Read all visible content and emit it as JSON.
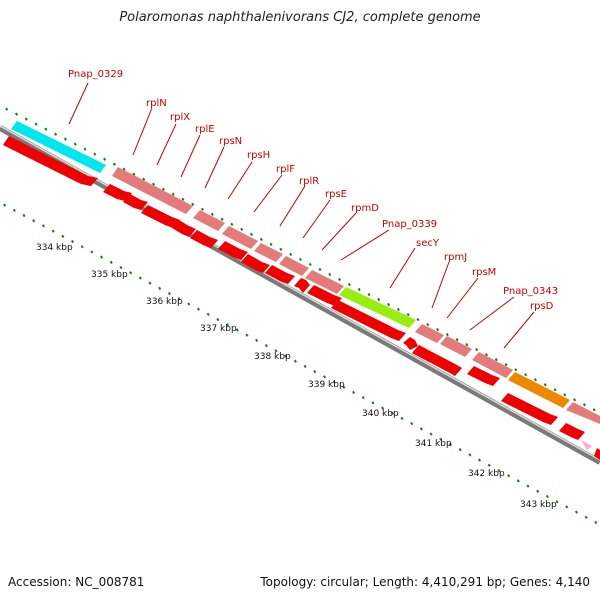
{
  "title": "Polaromonas naphthalenivorans CJ2, complete genome",
  "accession": "Accession: NC_008781",
  "summary": "Topology: circular; Length: 4,410,291 bp; Genes: 4,140",
  "gene_labels": [
    "Pnap_0329",
    "rplN",
    "rplX",
    "rplE",
    "rpsN",
    "rpsH",
    "rplF",
    "rplR",
    "rpsE",
    "rpmD",
    "Pnap_0339",
    "secY",
    "rpmJ",
    "rpsM",
    "Pnap_0343",
    "rpsD"
  ],
  "kbp_labels": [
    "334 kbp",
    "335 kbp",
    "336 kbp",
    "337 kbp",
    "338 kbp",
    "339 kbp",
    "340 kbp",
    "341 kbp",
    "342 kbp",
    "343 kbp"
  ],
  "colors": {
    "backbone": "#888888",
    "gene_red": "#ee0000",
    "gene_pink": "#e57a7a",
    "cyan": "#00e5ee",
    "green": "#99ee11",
    "orange": "#ee8800",
    "label": "#cc0000",
    "tick": "#1a7a1a"
  }
}
